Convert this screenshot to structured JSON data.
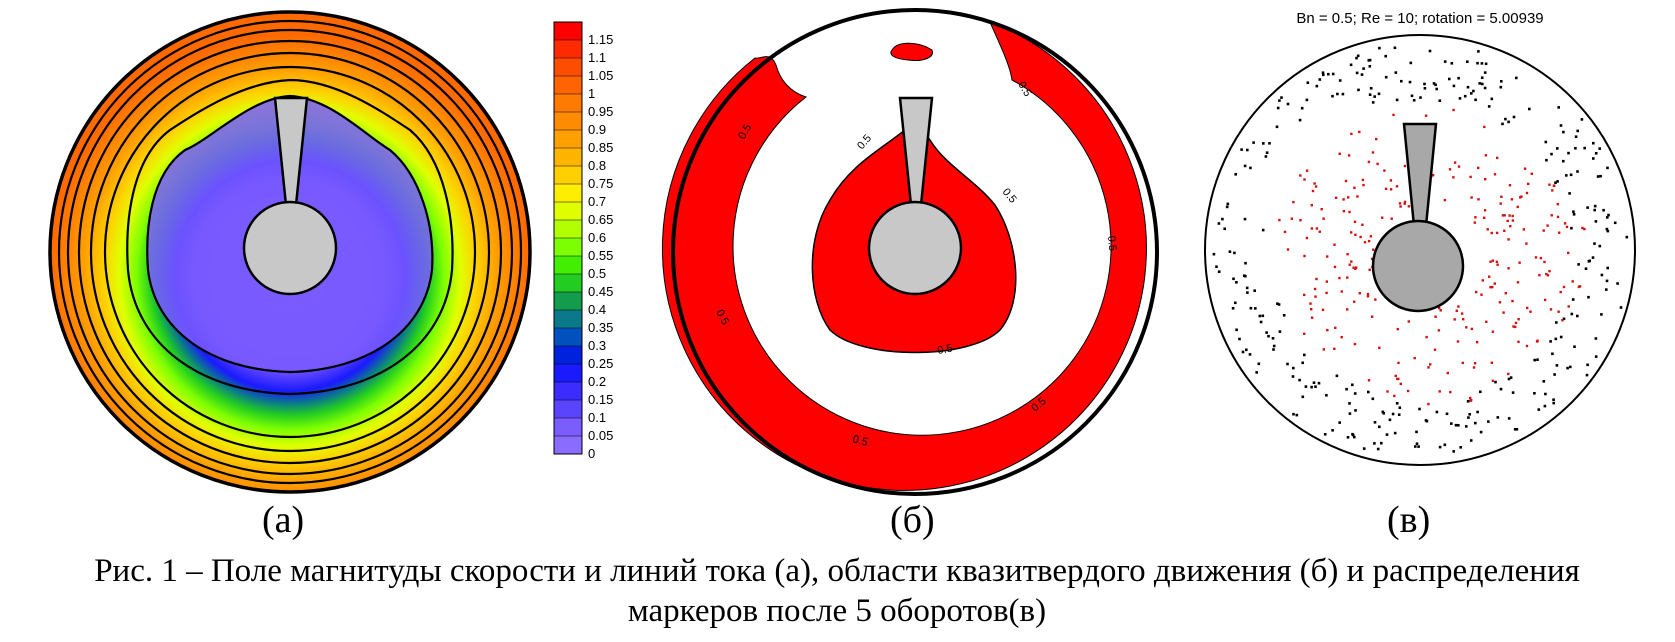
{
  "panels": {
    "a": {
      "label": "(а)",
      "colorbar": {
        "ticks": [
          "1.15",
          "1.1",
          "1.05",
          "1",
          "0.95",
          "0.9",
          "0.85",
          "0.8",
          "0.75",
          "0.7",
          "0.65",
          "0.6",
          "0.55",
          "0.5",
          "0.45",
          "0.4",
          "0.35",
          "0.3",
          "0.25",
          "0.2",
          "0.15",
          "0.1",
          "0.05",
          "0"
        ],
        "colors": [
          "#ff0000",
          "#ff2a00",
          "#ff4d00",
          "#ff6400",
          "#ff7a00",
          "#ff8c00",
          "#ffa000",
          "#ffb400",
          "#ffd000",
          "#ffee00",
          "#e0ff00",
          "#b2ff00",
          "#7cff00",
          "#44ee00",
          "#22cc22",
          "#139c4c",
          "#0a7a8a",
          "#0050c0",
          "#0022dd",
          "#1a1aff",
          "#3c2cff",
          "#5b44ff",
          "#7a5cff",
          "#8a6cff"
        ]
      }
    },
    "b": {
      "label": "(б)",
      "contour_labels": [
        "0.5",
        "0.5",
        "0.5",
        "0.5",
        "0.5",
        "0.5",
        "0.5",
        "0.5"
      ]
    },
    "c": {
      "label": "(в)",
      "title": "Bn = 0.5; Re = 10; rotation = 5.00939"
    }
  },
  "caption": {
    "line1": "Рис. 1 – Поле магнитуды скорости и линий тока (а), области квазитвердого движения (б) и распределения",
    "line2": "маркеров после 5 оборотов(в)"
  },
  "colors": {
    "quasi_solid": "#ff0000",
    "outer_red_markers": "#000000",
    "inner_markers": "#d41010",
    "rotor": "#c8c8c8",
    "rotor_c": "#a8a8a8"
  }
}
